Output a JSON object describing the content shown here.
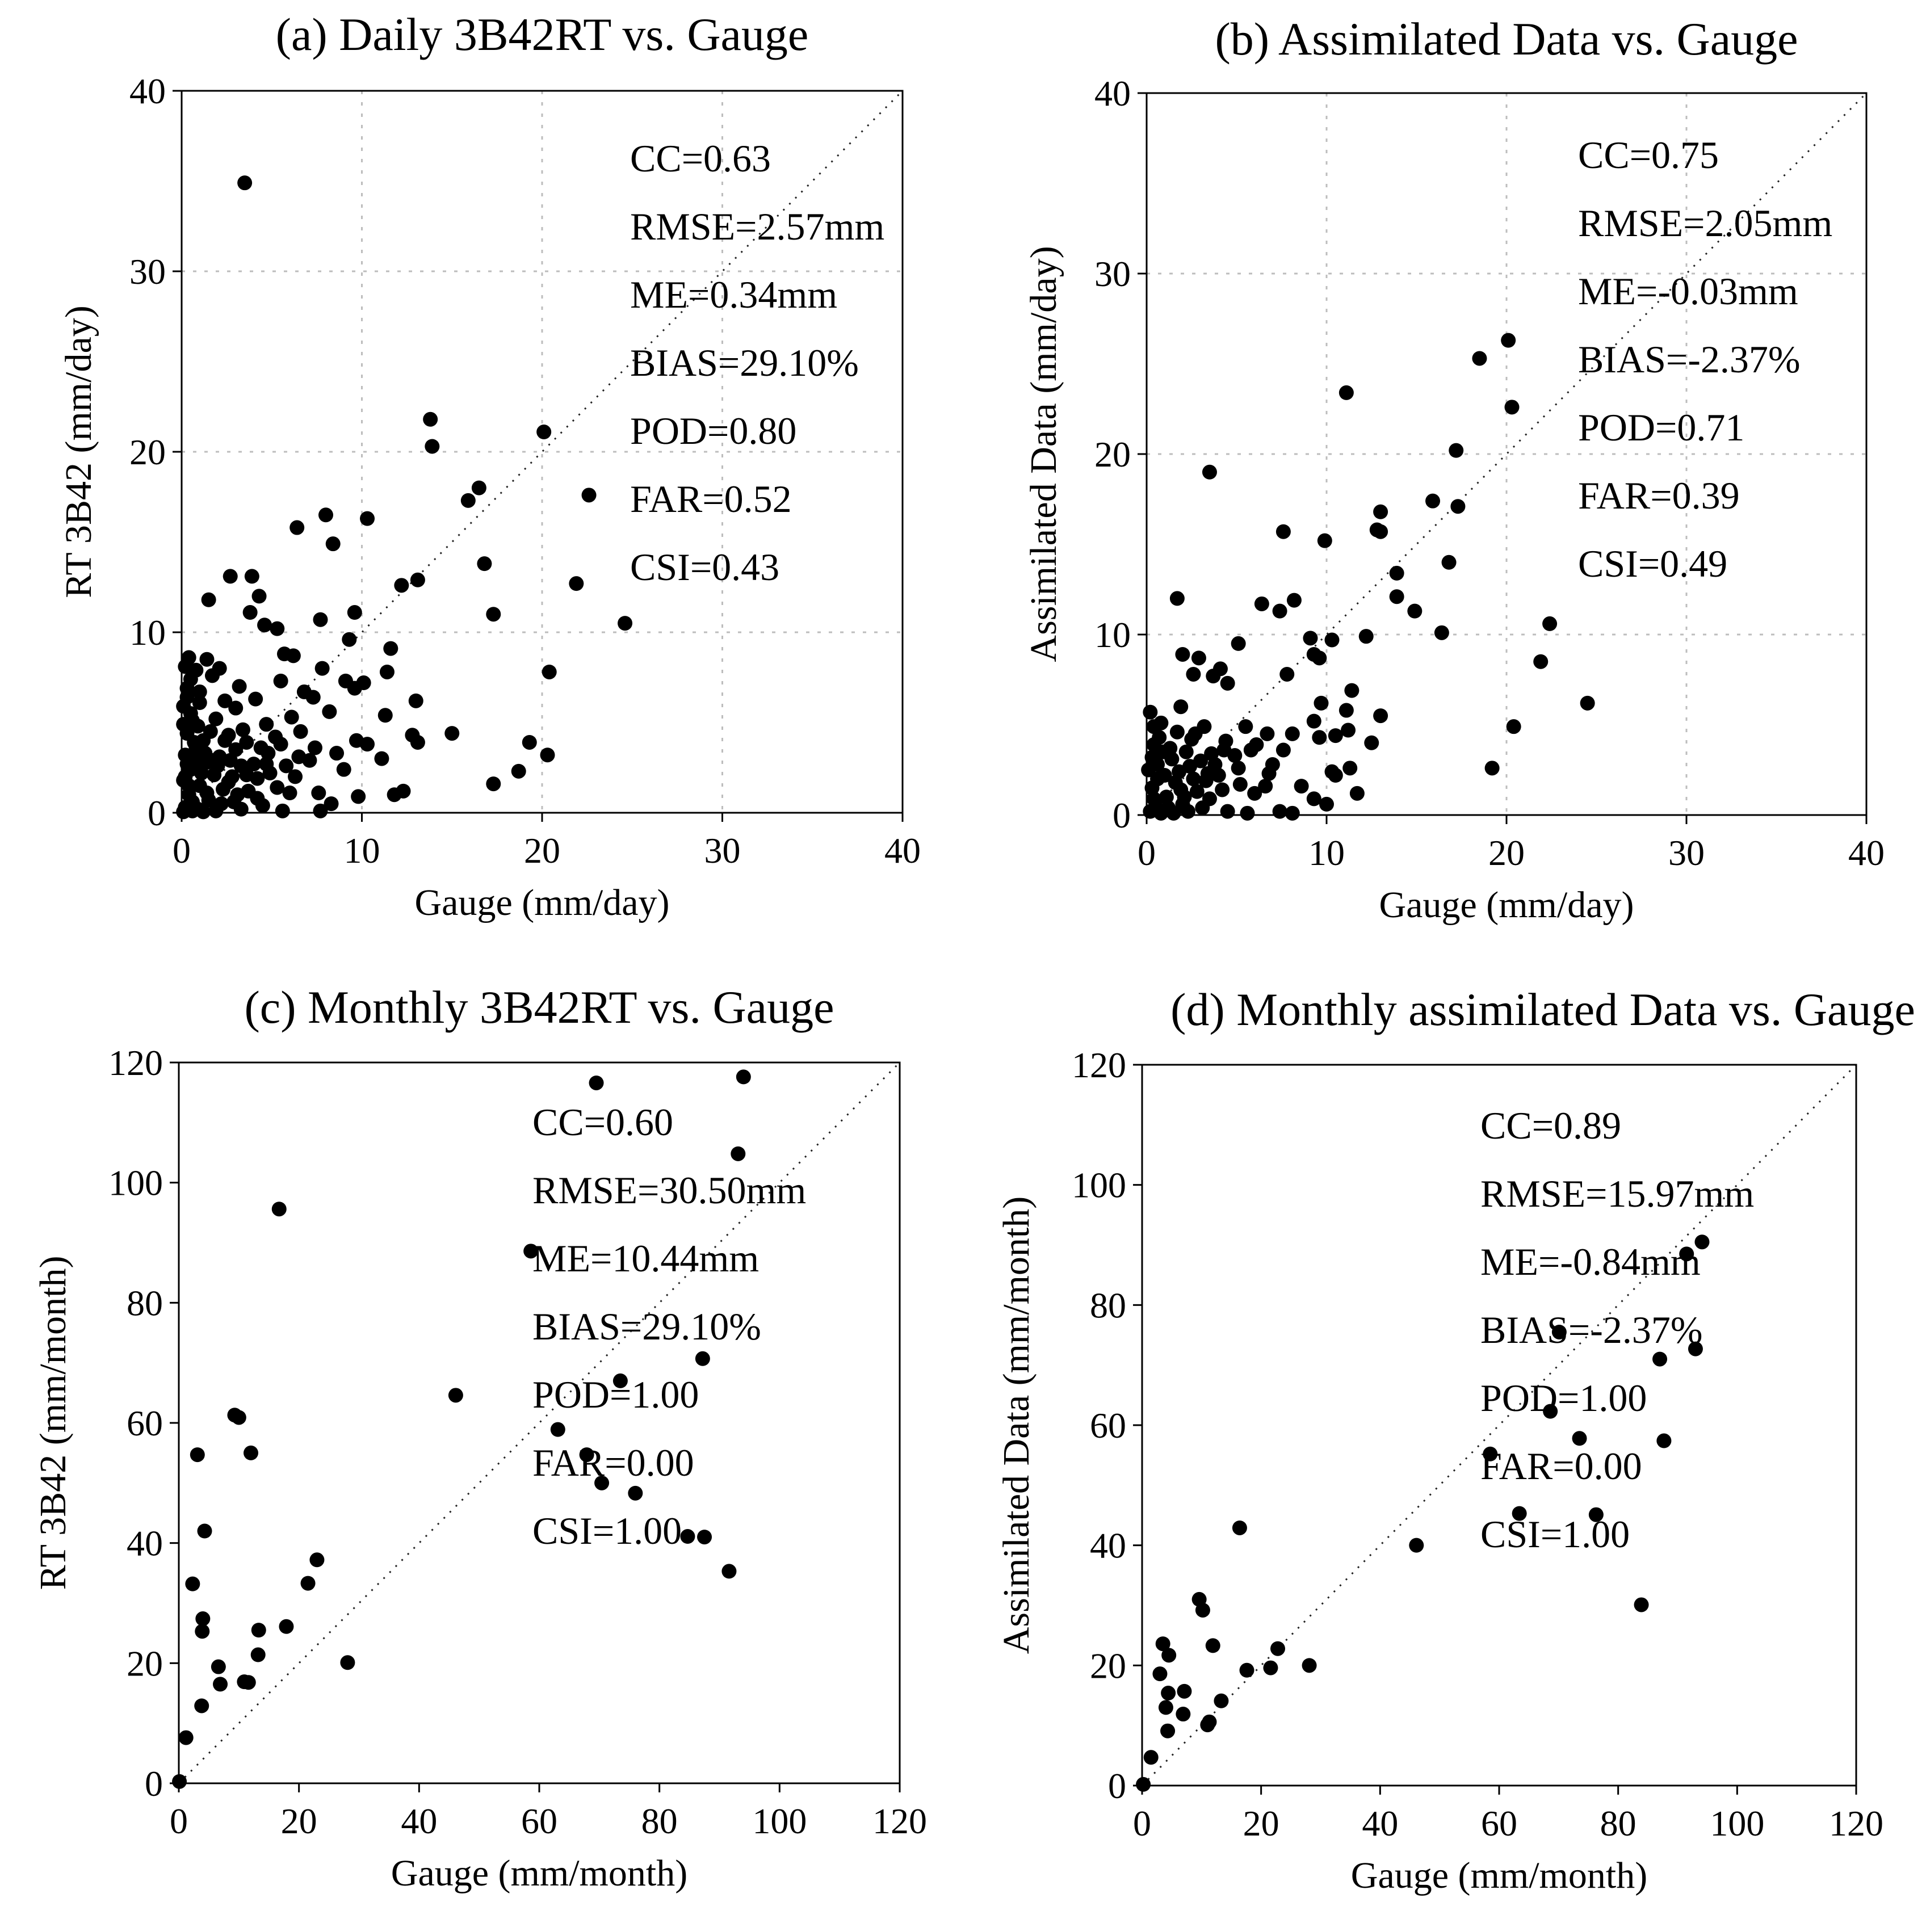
{
  "chart_data": [
    {
      "type": "scatter",
      "title": "(a)  Daily 3B42RT vs. Gauge",
      "xlabel": "Gauge (mm/day)",
      "ylabel": "RT 3B42 (mm/day)",
      "xlim": [
        0,
        40
      ],
      "ylim": [
        0,
        40
      ],
      "xticks": [
        0,
        10,
        20,
        30,
        40
      ],
      "yticks": [
        0,
        10,
        20,
        30,
        40
      ],
      "grid": true,
      "one_to_one_line": true,
      "stats": [
        "CC=0.63",
        "RMSE=2.57mm",
        "ME=0.34mm",
        "BIAS=29.10%",
        "POD=0.80",
        "FAR=0.52",
        "CSI=0.43"
      ],
      "points": [
        [
          3.5,
          34.9
        ],
        [
          13.8,
          21.8
        ],
        [
          13.9,
          20.3
        ],
        [
          20.1,
          21.1
        ],
        [
          16.5,
          18.0
        ],
        [
          15.9,
          17.3
        ],
        [
          22.6,
          17.6
        ],
        [
          10.3,
          16.3
        ],
        [
          6.4,
          15.8
        ],
        [
          8.0,
          16.5
        ],
        [
          8.4,
          14.9
        ],
        [
          16.8,
          13.8
        ],
        [
          12.2,
          12.6
        ],
        [
          13.1,
          12.9
        ],
        [
          21.9,
          12.7
        ],
        [
          2.7,
          13.1
        ],
        [
          3.9,
          13.1
        ],
        [
          1.5,
          11.8
        ],
        [
          4.3,
          12.0
        ],
        [
          17.3,
          11.0
        ],
        [
          9.6,
          11.1
        ],
        [
          3.8,
          11.1
        ],
        [
          7.7,
          10.7
        ],
        [
          24.6,
          10.5
        ],
        [
          4.6,
          10.4
        ],
        [
          5.3,
          10.2
        ],
        [
          9.3,
          9.6
        ],
        [
          11.6,
          9.1
        ],
        [
          5.7,
          8.8
        ],
        [
          6.2,
          8.7
        ],
        [
          0.4,
          8.6
        ],
        [
          1.4,
          8.5
        ],
        [
          2.1,
          8.0
        ],
        [
          7.8,
          8.0
        ],
        [
          20.4,
          7.8
        ],
        [
          9.1,
          7.3
        ],
        [
          10.1,
          7.2
        ],
        [
          5.5,
          7.3
        ],
        [
          11.4,
          7.8
        ],
        [
          0.2,
          8.1
        ],
        [
          0.8,
          7.9
        ],
        [
          1.7,
          7.6
        ],
        [
          3.2,
          7.0
        ],
        [
          6.8,
          6.7
        ],
        [
          7.3,
          6.4
        ],
        [
          9.6,
          6.9
        ],
        [
          13.0,
          6.2
        ],
        [
          4.1,
          6.3
        ],
        [
          1.0,
          6.7
        ],
        [
          2.4,
          6.2
        ],
        [
          0.3,
          6.4
        ],
        [
          0.1,
          5.9
        ],
        [
          3.0,
          5.8
        ],
        [
          6.1,
          5.3
        ],
        [
          8.2,
          5.6
        ],
        [
          11.3,
          5.4
        ],
        [
          1.9,
          5.2
        ],
        [
          4.7,
          4.9
        ],
        [
          0.6,
          5.1
        ],
        [
          15.0,
          4.4
        ],
        [
          12.8,
          4.3
        ],
        [
          13.1,
          3.9
        ],
        [
          19.3,
          3.9
        ],
        [
          20.3,
          3.2
        ],
        [
          9.7,
          4.0
        ],
        [
          10.3,
          3.8
        ],
        [
          7.4,
          3.6
        ],
        [
          2.6,
          4.3
        ],
        [
          5.2,
          4.2
        ],
        [
          3.6,
          3.9
        ],
        [
          0.3,
          4.4
        ],
        [
          1.2,
          4.0
        ],
        [
          0.8,
          3.6
        ],
        [
          4.8,
          3.3
        ],
        [
          6.5,
          3.1
        ],
        [
          8.6,
          3.3
        ],
        [
          11.1,
          3.0
        ],
        [
          2.1,
          3.1
        ],
        [
          1.4,
          2.8
        ],
        [
          0.2,
          3.2
        ],
        [
          3.3,
          2.6
        ],
        [
          5.8,
          2.6
        ],
        [
          7.1,
          2.9
        ],
        [
          9.0,
          2.4
        ],
        [
          17.3,
          1.6
        ],
        [
          18.7,
          2.3
        ],
        [
          12.3,
          1.2
        ],
        [
          11.8,
          1.0
        ],
        [
          0.5,
          2.4
        ],
        [
          1.8,
          2.1
        ],
        [
          2.8,
          2.0
        ],
        [
          4.2,
          1.9
        ],
        [
          6.3,
          2.0
        ],
        [
          0.1,
          1.8
        ],
        [
          1.0,
          1.5
        ],
        [
          2.3,
          1.3
        ],
        [
          3.7,
          1.2
        ],
        [
          5.3,
          1.4
        ],
        [
          7.6,
          1.1
        ],
        [
          9.8,
          0.9
        ],
        [
          0.4,
          1.0
        ],
        [
          1.5,
          0.7
        ],
        [
          2.9,
          0.6
        ],
        [
          4.5,
          0.4
        ],
        [
          8.3,
          0.5
        ],
        [
          0.2,
          0.3
        ],
        [
          0.9,
          0.2
        ],
        [
          1.9,
          0.1
        ],
        [
          3.3,
          0.2
        ],
        [
          5.6,
          0.1
        ],
        [
          7.7,
          0.1
        ],
        [
          0.1,
          0.05
        ],
        [
          0.6,
          0.1
        ],
        [
          1.2,
          0.05
        ],
        [
          0.3,
          2.7
        ],
        [
          0.7,
          3.9
        ],
        [
          0.5,
          5.5
        ],
        [
          0.9,
          4.8
        ],
        [
          1.3,
          3.3
        ],
        [
          1.6,
          4.5
        ],
        [
          2.0,
          2.6
        ],
        [
          2.4,
          4.0
        ],
        [
          2.6,
          1.7
        ],
        [
          3.0,
          3.5
        ],
        [
          3.4,
          4.6
        ],
        [
          4.0,
          2.7
        ],
        [
          4.4,
          3.6
        ],
        [
          4.9,
          2.2
        ],
        [
          5.5,
          3.8
        ],
        [
          6.0,
          1.1
        ],
        [
          6.6,
          4.5
        ],
        [
          0.2,
          2.0
        ],
        [
          0.4,
          1.5
        ],
        [
          0.6,
          0.6
        ],
        [
          0.8,
          2.9
        ],
        [
          1.1,
          2.2
        ],
        [
          1.4,
          1.1
        ],
        [
          1.7,
          2.9
        ],
        [
          2.2,
          0.5
        ],
        [
          2.7,
          2.9
        ],
        [
          3.1,
          1.0
        ],
        [
          3.6,
          2.1
        ],
        [
          4.2,
          0.8
        ],
        [
          4.7,
          2.7
        ],
        [
          0.1,
          4.9
        ],
        [
          0.3,
          6.9
        ],
        [
          0.5,
          7.4
        ],
        [
          1.0,
          6.1
        ]
      ]
    },
    {
      "type": "scatter",
      "title": "(b)  Assimilated Data vs. Gauge",
      "xlabel": "Gauge (mm/day)",
      "ylabel": "Assimilated Data (mm/day)",
      "xlim": [
        0,
        40
      ],
      "ylim": [
        0,
        40
      ],
      "xticks": [
        0,
        10,
        20,
        30,
        40
      ],
      "yticks": [
        0,
        10,
        20,
        30,
        40
      ],
      "grid": true,
      "one_to_one_line": true,
      "stats": [
        "CC=0.75",
        "RMSE=2.05mm",
        "ME=-0.03mm",
        "BIAS=-2.37%",
        "POD=0.71",
        "FAR=0.39",
        "CSI=0.49"
      ],
      "points": [
        [
          20.1,
          26.3
        ],
        [
          18.5,
          25.3
        ],
        [
          11.1,
          23.4
        ],
        [
          20.3,
          22.6
        ],
        [
          17.2,
          20.2
        ],
        [
          3.5,
          19.0
        ],
        [
          15.9,
          17.4
        ],
        [
          17.3,
          17.1
        ],
        [
          13.0,
          16.8
        ],
        [
          7.6,
          15.7
        ],
        [
          12.8,
          15.8
        ],
        [
          13.0,
          15.7
        ],
        [
          9.9,
          15.2
        ],
        [
          16.8,
          14.0
        ],
        [
          13.9,
          13.4
        ],
        [
          13.9,
          12.1
        ],
        [
          1.7,
          12.0
        ],
        [
          6.4,
          11.7
        ],
        [
          8.2,
          11.9
        ],
        [
          7.4,
          11.3
        ],
        [
          14.9,
          11.3
        ],
        [
          16.4,
          10.1
        ],
        [
          22.4,
          10.6
        ],
        [
          12.2,
          9.9
        ],
        [
          9.1,
          9.8
        ],
        [
          10.3,
          9.7
        ],
        [
          5.1,
          9.5
        ],
        [
          11.4,
          6.9
        ],
        [
          9.3,
          8.9
        ],
        [
          9.6,
          8.7
        ],
        [
          2.0,
          8.9
        ],
        [
          2.9,
          8.7
        ],
        [
          21.9,
          8.5
        ],
        [
          4.1,
          8.1
        ],
        [
          3.7,
          7.7
        ],
        [
          2.6,
          7.8
        ],
        [
          7.8,
          7.8
        ],
        [
          4.5,
          7.3
        ],
        [
          24.5,
          6.2
        ],
        [
          9.7,
          6.2
        ],
        [
          13.0,
          5.5
        ],
        [
          11.1,
          5.8
        ],
        [
          1.9,
          6.0
        ],
        [
          0.8,
          5.1
        ],
        [
          9.3,
          5.2
        ],
        [
          5.5,
          4.9
        ],
        [
          8.1,
          4.5
        ],
        [
          20.4,
          4.9
        ],
        [
          10.5,
          4.4
        ],
        [
          11.2,
          4.7
        ],
        [
          12.5,
          4.0
        ],
        [
          6.7,
          4.5
        ],
        [
          3.2,
          4.9
        ],
        [
          4.4,
          4.1
        ],
        [
          0.2,
          5.7
        ],
        [
          0.4,
          4.9
        ],
        [
          9.6,
          4.3
        ],
        [
          2.5,
          4.2
        ],
        [
          6.1,
          3.9
        ],
        [
          1.3,
          3.7
        ],
        [
          7.6,
          3.6
        ],
        [
          3.6,
          3.4
        ],
        [
          0.4,
          3.9
        ],
        [
          11.3,
          2.6
        ],
        [
          10.3,
          2.4
        ],
        [
          10.5,
          2.2
        ],
        [
          19.2,
          2.6
        ],
        [
          11.7,
          1.2
        ],
        [
          5.1,
          2.6
        ],
        [
          6.8,
          2.3
        ],
        [
          1.8,
          2.4
        ],
        [
          0.6,
          2.8
        ],
        [
          3.3,
          1.9
        ],
        [
          2.4,
          2.7
        ],
        [
          8.6,
          1.6
        ],
        [
          4.2,
          1.4
        ],
        [
          6.0,
          1.2
        ],
        [
          9.3,
          0.9
        ],
        [
          10.0,
          0.6
        ],
        [
          7.4,
          0.2
        ],
        [
          8.1,
          0.1
        ],
        [
          5.6,
          0.1
        ],
        [
          0.3,
          1.5
        ],
        [
          1.1,
          1.0
        ],
        [
          2.0,
          0.6
        ],
        [
          3.1,
          0.4
        ],
        [
          4.5,
          0.2
        ],
        [
          0.2,
          0.2
        ],
        [
          0.8,
          0.1
        ],
        [
          1.5,
          0.1
        ],
        [
          0.5,
          0.5
        ],
        [
          1.0,
          2.2
        ],
        [
          1.4,
          3.1
        ],
        [
          2.2,
          3.5
        ],
        [
          2.8,
          1.3
        ],
        [
          3.8,
          2.8
        ],
        [
          4.9,
          3.3
        ],
        [
          0.3,
          3.2
        ],
        [
          0.7,
          4.3
        ],
        [
          1.6,
          1.8
        ],
        [
          2.6,
          2.0
        ],
        [
          3.0,
          3.0
        ],
        [
          3.5,
          0.9
        ],
        [
          4.0,
          2.2
        ],
        [
          5.2,
          1.7
        ],
        [
          5.8,
          3.6
        ],
        [
          6.6,
          1.6
        ],
        [
          7.0,
          2.8
        ],
        [
          0.1,
          2.5
        ],
        [
          0.9,
          3.5
        ],
        [
          1.2,
          0.4
        ],
        [
          1.9,
          1.4
        ],
        [
          2.3,
          0.2
        ],
        [
          2.7,
          4.5
        ],
        [
          3.4,
          2.3
        ],
        [
          4.3,
          3.6
        ],
        [
          0.4,
          0.9
        ],
        [
          0.6,
          2.0
        ],
        [
          1.7,
          4.6
        ],
        [
          2.1,
          1.0
        ]
      ]
    },
    {
      "type": "scatter",
      "title": "(c)  Monthly 3B42RT vs. Gauge",
      "xlabel": "Gauge (mm/month)",
      "ylabel": "RT 3B42 (mm/month)",
      "xlim": [
        0,
        120
      ],
      "ylim": [
        0,
        120
      ],
      "xticks": [
        0,
        20,
        40,
        60,
        80,
        100,
        120
      ],
      "yticks": [
        0,
        20,
        40,
        60,
        80,
        100,
        120
      ],
      "grid": false,
      "one_to_one_line": true,
      "stats": [
        "CC=0.60",
        "RMSE=30.50mm",
        "ME=10.44mm",
        "BIAS=29.10%",
        "POD=1.00",
        "FAR=0.00",
        "CSI=1.00"
      ],
      "points": [
        [
          69.5,
          116.6
        ],
        [
          94.0,
          117.6
        ],
        [
          93.1,
          104.8
        ],
        [
          16.7,
          95.6
        ],
        [
          58.6,
          88.6
        ],
        [
          87.2,
          70.7
        ],
        [
          73.5,
          67.0
        ],
        [
          46.1,
          64.6
        ],
        [
          9.3,
          61.3
        ],
        [
          10.0,
          60.9
        ],
        [
          63.1,
          58.9
        ],
        [
          3.1,
          54.7
        ],
        [
          12.0,
          55.0
        ],
        [
          67.9,
          54.7
        ],
        [
          70.4,
          50.0
        ],
        [
          76.0,
          48.3
        ],
        [
          4.3,
          42.0
        ],
        [
          84.7,
          41.1
        ],
        [
          87.5,
          41.0
        ],
        [
          2.3,
          33.2
        ],
        [
          91.6,
          35.3
        ],
        [
          21.5,
          33.3
        ],
        [
          23.0,
          37.2
        ],
        [
          4.0,
          27.4
        ],
        [
          3.9,
          25.3
        ],
        [
          13.3,
          25.5
        ],
        [
          17.9,
          26.1
        ],
        [
          28.1,
          20.1
        ],
        [
          6.6,
          19.4
        ],
        [
          13.2,
          21.4
        ],
        [
          6.9,
          16.5
        ],
        [
          10.9,
          16.9
        ],
        [
          11.6,
          16.8
        ],
        [
          3.8,
          12.9
        ],
        [
          1.2,
          7.6
        ],
        [
          0.1,
          0.3
        ]
      ]
    },
    {
      "type": "scatter",
      "title": "(d)  Monthly assimilated Data vs. Gauge",
      "xlabel": "Gauge (mm/month)",
      "ylabel": "Assimilated Data (mm/month)",
      "xlim": [
        0,
        120
      ],
      "ylim": [
        0,
        120
      ],
      "xticks": [
        0,
        20,
        40,
        60,
        80,
        100,
        120
      ],
      "yticks": [
        0,
        20,
        40,
        60,
        80,
        100,
        120
      ],
      "grid": false,
      "one_to_one_line": true,
      "stats": [
        "CC=0.89",
        "RMSE=15.97mm",
        "ME=-0.84mm",
        "BIAS=-2.37%",
        "POD=1.00",
        "FAR=0.00",
        "CSI=1.00"
      ],
      "points": [
        [
          94.1,
          90.5
        ],
        [
          91.5,
          88.5
        ],
        [
          70.1,
          75.5
        ],
        [
          93.0,
          72.7
        ],
        [
          87.0,
          71.0
        ],
        [
          68.6,
          62.3
        ],
        [
          73.5,
          57.8
        ],
        [
          87.7,
          57.4
        ],
        [
          58.5,
          55.2
        ],
        [
          63.4,
          45.3
        ],
        [
          76.3,
          45.1
        ],
        [
          16.4,
          42.9
        ],
        [
          46.1,
          40.0
        ],
        [
          83.9,
          30.1
        ],
        [
          9.6,
          31.0
        ],
        [
          10.2,
          29.2
        ],
        [
          3.5,
          23.6
        ],
        [
          4.5,
          21.7
        ],
        [
          11.9,
          23.3
        ],
        [
          22.8,
          22.8
        ],
        [
          28.1,
          20.0
        ],
        [
          21.6,
          19.6
        ],
        [
          17.6,
          19.2
        ],
        [
          3.0,
          18.6
        ],
        [
          4.4,
          15.4
        ],
        [
          7.1,
          15.7
        ],
        [
          4.0,
          13.0
        ],
        [
          13.3,
          14.1
        ],
        [
          6.9,
          11.9
        ],
        [
          11.3,
          10.6
        ],
        [
          11.0,
          10.1
        ],
        [
          4.3,
          9.1
        ],
        [
          1.5,
          4.7
        ],
        [
          0.2,
          0.2
        ]
      ]
    }
  ]
}
